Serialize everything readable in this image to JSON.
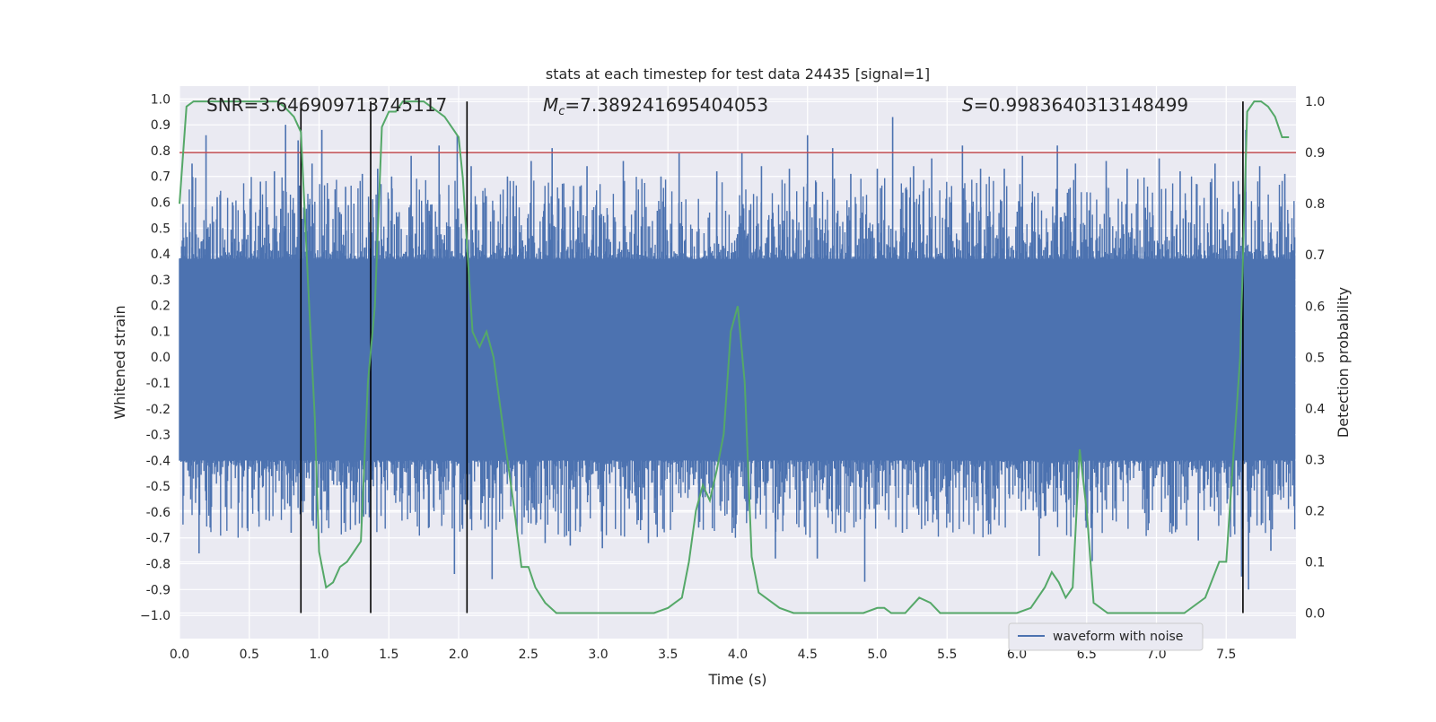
{
  "chart_data": {
    "type": "line",
    "title": "stats at each timestep for test data 24435 [signal=1]",
    "xlabel": "Time (s)",
    "ylabel_left": "Whitened strain",
    "ylabel_right": "Detection probability",
    "xlim": [
      0.0,
      8.0
    ],
    "ylim_left": [
      -1.09,
      1.05
    ],
    "ylim_right": [
      -0.05,
      1.03
    ],
    "x_ticks": [
      "0.0",
      "0.5",
      "1.0",
      "1.5",
      "2.0",
      "2.5",
      "3.0",
      "3.5",
      "4.0",
      "4.5",
      "5.0",
      "5.5",
      "6.0",
      "6.5",
      "7.0",
      "7.5"
    ],
    "y_ticks_left": [
      "1.0",
      "0.9",
      "0.8",
      "0.7",
      "0.6",
      "0.5",
      "0.4",
      "0.3",
      "0.2",
      "0.1",
      "0.0",
      "-0.1",
      "-0.2",
      "-0.3",
      "-0.4",
      "-0.5",
      "-0.6",
      "-0.7",
      "-0.8",
      "-0.9",
      "−1.0"
    ],
    "y_ticks_right": [
      "1.0",
      "0.9",
      "0.8",
      "0.7",
      "0.6",
      "0.5",
      "0.4",
      "0.3",
      "0.2",
      "0.1",
      "0.0"
    ],
    "grid": true,
    "annotations": {
      "snr": "SNR=3.646909713745117",
      "mc_symbol": "M",
      "mc_sub": "c",
      "mc_value": "=7.389241695404053",
      "s_symbol": "S",
      "s_value": "=0.9983640313148499"
    },
    "threshold": {
      "axis": "right",
      "value": 0.9,
      "color": "#c44e52"
    },
    "vertical_lines": [
      0.87,
      1.37,
      2.06,
      7.62
    ],
    "waveform": {
      "name": "waveform with noise",
      "color": "#4c72b0",
      "dense_band": [
        -0.4,
        0.38
      ],
      "spikes": [
        [
          0.09,
          0.75
        ],
        [
          0.14,
          -0.76
        ],
        [
          0.19,
          0.86
        ],
        [
          0.22,
          -0.66
        ],
        [
          0.27,
          0.62
        ],
        [
          0.33,
          -0.58
        ],
        [
          0.38,
          0.6
        ],
        [
          0.45,
          -0.52
        ],
        [
          0.58,
          0.68
        ],
        [
          0.62,
          -0.63
        ],
        [
          0.68,
          0.72
        ],
        [
          0.74,
          -0.55
        ],
        [
          0.76,
          0.9
        ],
        [
          0.8,
          -0.68
        ],
        [
          0.85,
          0.84
        ],
        [
          0.95,
          0.75
        ],
        [
          1.02,
          0.88
        ],
        [
          1.06,
          -0.58
        ],
        [
          1.19,
          0.66
        ],
        [
          1.26,
          -0.65
        ],
        [
          1.31,
          0.71
        ],
        [
          1.36,
          -0.62
        ],
        [
          1.42,
          0.73
        ],
        [
          1.52,
          0.7
        ],
        [
          1.58,
          -0.56
        ],
        [
          1.66,
          0.78
        ],
        [
          1.75,
          -0.55
        ],
        [
          1.86,
          0.82
        ],
        [
          1.97,
          -0.84
        ],
        [
          1.99,
          0.86
        ],
        [
          2.09,
          0.74
        ],
        [
          2.16,
          -0.63
        ],
        [
          2.24,
          -0.86
        ],
        [
          2.35,
          0.7
        ],
        [
          2.47,
          -0.62
        ],
        [
          2.52,
          0.76
        ],
        [
          2.62,
          -0.72
        ],
        [
          2.67,
          0.81
        ],
        [
          2.8,
          -0.73
        ],
        [
          2.92,
          0.74
        ],
        [
          3.03,
          -0.74
        ],
        [
          3.18,
          0.76
        ],
        [
          3.36,
          -0.72
        ],
        [
          3.45,
          0.7
        ],
        [
          3.58,
          0.79
        ],
        [
          3.72,
          -0.66
        ],
        [
          3.85,
          0.72
        ],
        [
          3.96,
          -0.68
        ],
        [
          4.03,
          0.79
        ],
        [
          4.17,
          0.74
        ],
        [
          4.27,
          -0.78
        ],
        [
          4.37,
          0.73
        ],
        [
          4.5,
          0.86
        ],
        [
          4.57,
          -0.78
        ],
        [
          4.68,
          0.81
        ],
        [
          4.81,
          0.71
        ],
        [
          4.91,
          -0.87
        ],
        [
          5.0,
          0.73
        ],
        [
          5.11,
          0.93
        ],
        [
          5.18,
          -0.68
        ],
        [
          5.26,
          0.74
        ],
        [
          5.39,
          0.77
        ],
        [
          5.52,
          -0.64
        ],
        [
          5.61,
          0.82
        ],
        [
          5.74,
          0.73
        ],
        [
          5.84,
          -0.63
        ],
        [
          5.91,
          0.73
        ],
        [
          6.04,
          0.78
        ],
        [
          6.16,
          -0.77
        ],
        [
          6.29,
          0.82
        ],
        [
          6.42,
          0.75
        ],
        [
          6.54,
          -0.79
        ],
        [
          6.64,
          0.76
        ],
        [
          6.79,
          0.73
        ],
        [
          6.94,
          -0.67
        ],
        [
          7.02,
          0.77
        ],
        [
          7.17,
          0.72
        ],
        [
          7.3,
          -0.71
        ],
        [
          7.42,
          0.75
        ],
        [
          7.55,
          0.68
        ],
        [
          7.61,
          -0.85
        ],
        [
          7.64,
          0.88
        ],
        [
          7.66,
          -0.9
        ],
        [
          7.74,
          0.74
        ],
        [
          7.82,
          -0.75
        ],
        [
          7.92,
          0.71
        ]
      ]
    },
    "probability_series": {
      "color": "#55a868",
      "x": [
        0.0,
        0.05,
        0.1,
        0.15,
        0.2,
        0.3,
        0.4,
        0.5,
        0.6,
        0.7,
        0.75,
        0.82,
        0.87,
        0.92,
        0.97,
        1.0,
        1.05,
        1.1,
        1.15,
        1.2,
        1.25,
        1.3,
        1.35,
        1.4,
        1.45,
        1.5,
        1.55,
        1.6,
        1.65,
        1.7,
        1.75,
        1.8,
        1.85,
        1.9,
        1.95,
        2.0,
        2.03,
        2.06,
        2.1,
        2.15,
        2.2,
        2.25,
        2.3,
        2.35,
        2.4,
        2.45,
        2.5,
        2.55,
        2.62,
        2.7,
        2.78,
        2.85,
        3.0,
        3.2,
        3.4,
        3.5,
        3.55,
        3.6,
        3.65,
        3.7,
        3.75,
        3.8,
        3.85,
        3.9,
        3.95,
        4.0,
        4.05,
        4.1,
        4.15,
        4.2,
        4.3,
        4.4,
        4.5,
        4.7,
        4.9,
        5.0,
        5.05,
        5.1,
        5.2,
        5.3,
        5.38,
        5.45,
        5.6,
        5.8,
        6.0,
        6.1,
        6.2,
        6.25,
        6.3,
        6.35,
        6.4,
        6.45,
        6.5,
        6.55,
        6.6,
        6.65,
        6.7,
        6.8,
        7.0,
        7.2,
        7.35,
        7.45,
        7.5,
        7.55,
        7.6,
        7.65,
        7.7,
        7.75,
        7.8,
        7.85,
        7.9,
        7.95
      ],
      "y": [
        0.8,
        0.99,
        1.0,
        1.0,
        1.0,
        1.0,
        1.0,
        1.0,
        1.0,
        1.0,
        0.99,
        0.97,
        0.94,
        0.65,
        0.38,
        0.12,
        0.05,
        0.06,
        0.09,
        0.1,
        0.12,
        0.14,
        0.45,
        0.6,
        0.95,
        0.98,
        0.98,
        1.0,
        1.0,
        1.0,
        1.0,
        0.99,
        0.98,
        0.97,
        0.95,
        0.93,
        0.85,
        0.72,
        0.55,
        0.52,
        0.55,
        0.5,
        0.4,
        0.3,
        0.2,
        0.09,
        0.09,
        0.05,
        0.02,
        0.0,
        0.0,
        0.0,
        0.0,
        0.0,
        0.0,
        0.01,
        0.02,
        0.03,
        0.1,
        0.2,
        0.25,
        0.22,
        0.28,
        0.35,
        0.55,
        0.6,
        0.45,
        0.11,
        0.04,
        0.03,
        0.01,
        0.0,
        0.0,
        0.0,
        0.0,
        0.01,
        0.01,
        0.0,
        0.0,
        0.03,
        0.02,
        0.0,
        0.0,
        0.0,
        0.0,
        0.01,
        0.05,
        0.08,
        0.06,
        0.03,
        0.05,
        0.32,
        0.2,
        0.02,
        0.01,
        0.0,
        0.0,
        0.0,
        0.0,
        0.0,
        0.03,
        0.1,
        0.1,
        0.3,
        0.5,
        0.98,
        1.0,
        1.0,
        0.99,
        0.97,
        0.93,
        0.93
      ]
    },
    "legend": {
      "position": "lower-right",
      "entries": [
        "waveform with noise"
      ]
    }
  }
}
